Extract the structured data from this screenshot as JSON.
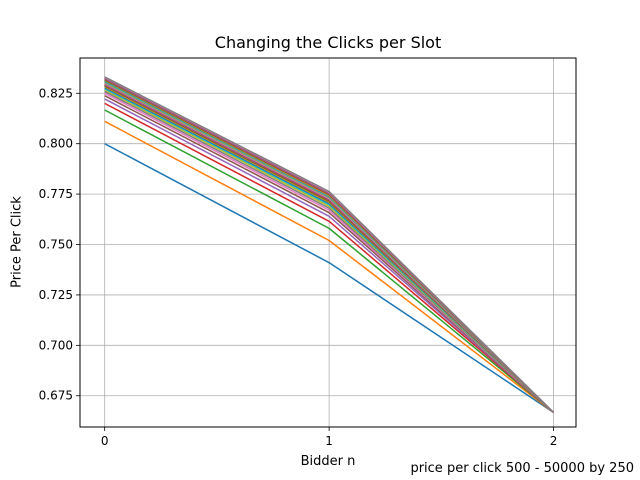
{
  "chart_data": {
    "type": "line",
    "title": "Changing the Clicks per Slot",
    "xlabel": "Bidder n",
    "ylabel": "Price Per Click",
    "footnote": "price per click 500 - 50000 by 250",
    "x": [
      0,
      1,
      2
    ],
    "xticks": [
      "0",
      "1",
      "2"
    ],
    "yticks": [
      "0.675",
      "0.700",
      "0.725",
      "0.750",
      "0.775",
      "0.800",
      "0.825"
    ],
    "xlim": [
      -0.11,
      2.1
    ],
    "ylim": [
      0.6595,
      0.8425
    ],
    "grid": true,
    "legend": "none",
    "series": [
      {
        "color": "#1f77b4",
        "values": [
          0.8,
          0.741,
          0.6667
        ]
      },
      {
        "color": "#ff7f0e",
        "values": [
          0.8111,
          0.752,
          0.6667
        ]
      },
      {
        "color": "#2ca02c",
        "values": [
          0.8167,
          0.758,
          0.6667
        ]
      },
      {
        "color": "#d62728",
        "values": [
          0.82,
          0.7615,
          0.6667
        ]
      },
      {
        "color": "#9467bd",
        "values": [
          0.8222,
          0.764,
          0.6667
        ]
      },
      {
        "color": "#8c564b",
        "values": [
          0.8238,
          0.7658,
          0.6667
        ]
      },
      {
        "color": "#e377c2",
        "values": [
          0.825,
          0.767,
          0.6667
        ]
      },
      {
        "color": "#7f7f7f",
        "values": [
          0.8259,
          0.768,
          0.6667
        ]
      },
      {
        "color": "#bcbd22",
        "values": [
          0.8267,
          0.769,
          0.6667
        ]
      },
      {
        "color": "#17becf",
        "values": [
          0.8273,
          0.7698,
          0.6667
        ]
      },
      {
        "color": "#1f77b4",
        "values": [
          0.8278,
          0.7704,
          0.6667
        ]
      },
      {
        "color": "#ff7f0e",
        "values": [
          0.8283,
          0.771,
          0.6667
        ]
      },
      {
        "color": "#2ca02c",
        "values": [
          0.8287,
          0.7714,
          0.6667
        ]
      },
      {
        "color": "#d62728",
        "values": [
          0.829,
          0.7718,
          0.6667
        ]
      },
      {
        "color": "#9467bd",
        "values": [
          0.8293,
          0.7722,
          0.6667
        ]
      },
      {
        "color": "#8c564b",
        "values": [
          0.8296,
          0.7725,
          0.6667
        ]
      },
      {
        "color": "#e377c2",
        "values": [
          0.8299,
          0.7728,
          0.6667
        ]
      },
      {
        "color": "#7f7f7f",
        "values": [
          0.8302,
          0.7732,
          0.6667
        ]
      },
      {
        "color": "#bcbd22",
        "values": [
          0.8305,
          0.7735,
          0.6667
        ]
      },
      {
        "color": "#17becf",
        "values": [
          0.8308,
          0.7738,
          0.6667
        ]
      },
      {
        "color": "#1f77b4",
        "values": [
          0.8311,
          0.7741,
          0.6667
        ]
      },
      {
        "color": "#ff7f0e",
        "values": [
          0.8314,
          0.7744,
          0.6667
        ]
      },
      {
        "color": "#2ca02c",
        "values": [
          0.8317,
          0.7748,
          0.6667
        ]
      },
      {
        "color": "#d62728",
        "values": [
          0.832,
          0.7751,
          0.6667
        ]
      },
      {
        "color": "#9467bd",
        "values": [
          0.8323,
          0.7754,
          0.6667
        ]
      },
      {
        "color": "#8c564b",
        "values": [
          0.8326,
          0.7757,
          0.6667
        ]
      },
      {
        "color": "#e377c2",
        "values": [
          0.8329,
          0.776,
          0.6667
        ]
      },
      {
        "color": "#7f7f7f",
        "values": [
          0.8331,
          0.7763,
          0.6667
        ]
      }
    ]
  }
}
